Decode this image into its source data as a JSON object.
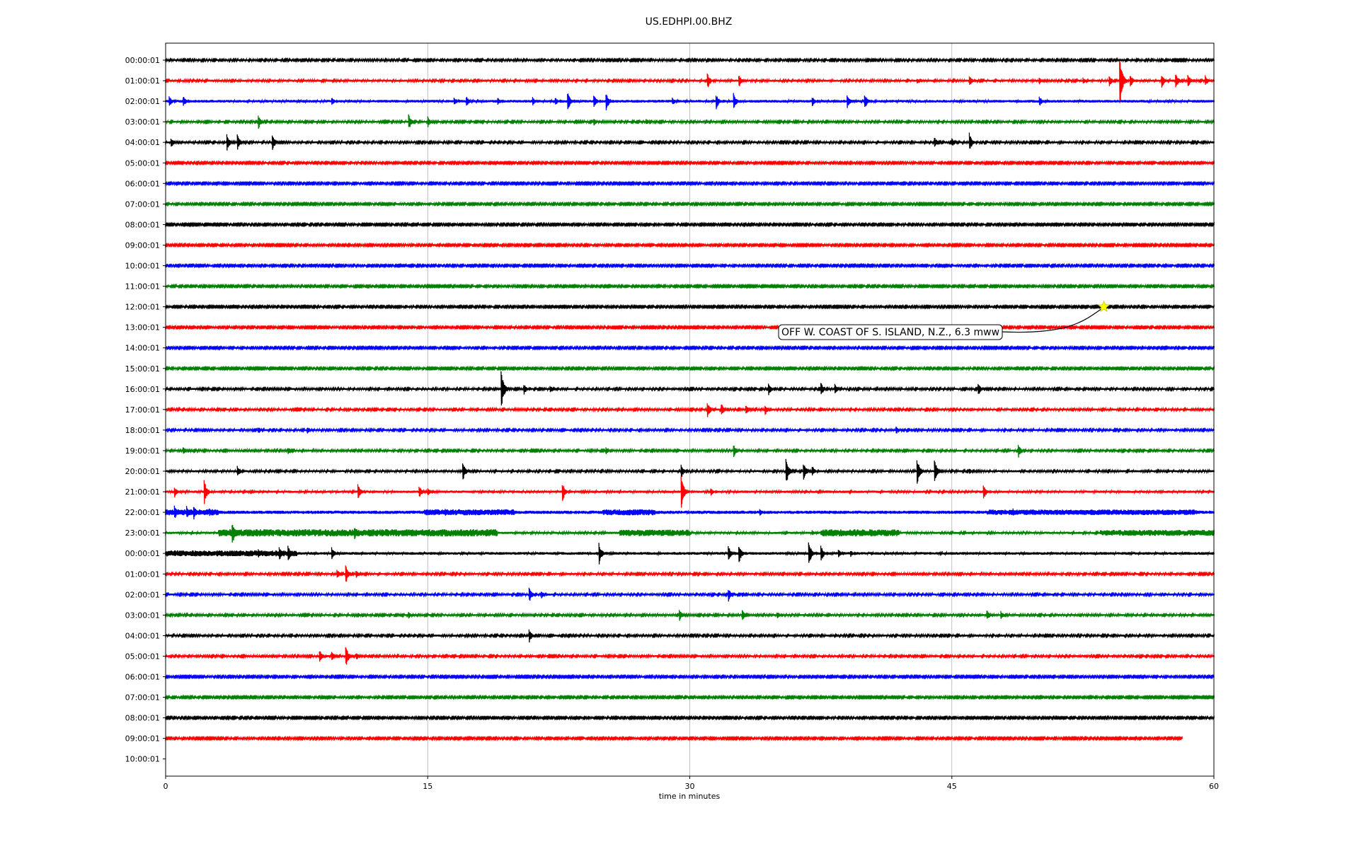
{
  "chart_data": {
    "type": "line",
    "title": "US.EDHPI.00.BHZ",
    "xlabel": "time in minutes",
    "ylabel": "",
    "xlim": [
      0,
      60
    ],
    "x_ticks": [
      "0",
      "15",
      "30",
      "45",
      "60"
    ],
    "x_tick_values": [
      0,
      15,
      30,
      45,
      60
    ],
    "grid": "vertical",
    "legend": "none",
    "row_labels": [
      "00:00:01",
      "01:00:01",
      "02:00:01",
      "03:00:01",
      "04:00:01",
      "05:00:01",
      "06:00:01",
      "07:00:01",
      "08:00:01",
      "09:00:01",
      "10:00:01",
      "11:00:01",
      "12:00:01",
      "13:00:01",
      "14:00:01",
      "15:00:01",
      "16:00:01",
      "17:00:01",
      "18:00:01",
      "19:00:01",
      "20:00:01",
      "21:00:01",
      "22:00:01",
      "23:00:01",
      "00:00:01",
      "01:00:01",
      "02:00:01",
      "03:00:01",
      "04:00:01",
      "05:00:01",
      "06:00:01",
      "07:00:01",
      "08:00:01",
      "09:00:01",
      "10:00:01"
    ],
    "trace_colors": [
      "#000000",
      "#ff0000",
      "#0000ff",
      "#008000"
    ],
    "series": [
      {
        "row": 0,
        "end": 60,
        "noise": 1.2,
        "bursts": [
          [
            8.5,
            2
          ]
        ]
      },
      {
        "row": 1,
        "end": 60,
        "noise": 1.4,
        "bursts": [
          [
            31,
            12
          ],
          [
            32.8,
            10
          ],
          [
            43,
            4
          ],
          [
            46,
            8
          ],
          [
            50,
            5
          ],
          [
            52.5,
            5
          ],
          [
            54,
            8
          ],
          [
            54.6,
            36
          ],
          [
            55.2,
            10
          ],
          [
            57,
            10
          ],
          [
            57.8,
            12
          ],
          [
            58.5,
            10
          ],
          [
            59.5,
            8
          ]
        ]
      },
      {
        "row": 2,
        "end": 60,
        "noise": 1.8,
        "bursts": [
          [
            0.2,
            8
          ],
          [
            1,
            8
          ],
          [
            9.5,
            6
          ],
          [
            16.5,
            6
          ],
          [
            17.2,
            8
          ],
          [
            19,
            6
          ],
          [
            21,
            6
          ],
          [
            22.3,
            6
          ],
          [
            23,
            14
          ],
          [
            24.5,
            10
          ],
          [
            25.2,
            14
          ],
          [
            29,
            6
          ],
          [
            31.5,
            12
          ],
          [
            32.5,
            12
          ],
          [
            37,
            8
          ],
          [
            39,
            10
          ],
          [
            40,
            12
          ],
          [
            50,
            8
          ]
        ]
      },
      {
        "row": 3,
        "end": 60,
        "noise": 1.3,
        "bursts": [
          [
            5.3,
            10
          ],
          [
            13.9,
            12
          ],
          [
            15,
            8
          ],
          [
            23.5,
            4
          ],
          [
            24.5,
            6
          ],
          [
            27.5,
            4
          ]
        ]
      },
      {
        "row": 4,
        "end": 60,
        "noise": 1.3,
        "bursts": [
          [
            0.3,
            8
          ],
          [
            3.5,
            12
          ],
          [
            4.1,
            12
          ],
          [
            6.1,
            12
          ],
          [
            44,
            8
          ],
          [
            45,
            6
          ],
          [
            46,
            14
          ]
        ]
      },
      {
        "row": 5,
        "end": 60,
        "noise": 1.1,
        "bursts": [
          [
            16.5,
            3
          ]
        ]
      },
      {
        "row": 6,
        "end": 60,
        "noise": 1.1,
        "bursts": []
      },
      {
        "row": 7,
        "end": 60,
        "noise": 1.1,
        "bursts": []
      },
      {
        "row": 8,
        "end": 60,
        "noise": 1.1,
        "bursts": []
      },
      {
        "row": 9,
        "end": 60,
        "noise": 1.1,
        "bursts": []
      },
      {
        "row": 10,
        "end": 60,
        "noise": 1.1,
        "bursts": []
      },
      {
        "row": 11,
        "end": 60,
        "noise": 1.1,
        "bursts": []
      },
      {
        "row": 12,
        "end": 60,
        "noise": 1.1,
        "bursts": []
      },
      {
        "row": 13,
        "end": 60,
        "noise": 1.1,
        "bursts": []
      },
      {
        "row": 14,
        "end": 60,
        "noise": 1.1,
        "bursts": []
      },
      {
        "row": 15,
        "end": 60,
        "noise": 1.1,
        "bursts": []
      },
      {
        "row": 16,
        "end": 60,
        "noise": 1.3,
        "bursts": [
          [
            19.2,
            28
          ],
          [
            20.5,
            8
          ],
          [
            22,
            5
          ],
          [
            34.5,
            10
          ],
          [
            37.5,
            10
          ],
          [
            38.3,
            8
          ],
          [
            46.5,
            10
          ],
          [
            52.8,
            3
          ]
        ]
      },
      {
        "row": 17,
        "end": 60,
        "noise": 1.3,
        "bursts": [
          [
            31,
            12
          ],
          [
            31.8,
            10
          ],
          [
            33.2,
            8
          ],
          [
            34.3,
            8
          ],
          [
            37.5,
            3
          ]
        ]
      },
      {
        "row": 18,
        "end": 60,
        "noise": 1.3,
        "bursts": [
          [
            5.3,
            5
          ],
          [
            8.1,
            5
          ],
          [
            41.8,
            6
          ],
          [
            42.5,
            3
          ]
        ]
      },
      {
        "row": 19,
        "end": 60,
        "noise": 1.3,
        "bursts": [
          [
            1,
            6
          ],
          [
            7,
            6
          ],
          [
            25.2,
            5
          ],
          [
            32.5,
            10
          ],
          [
            48.8,
            10
          ]
        ]
      },
      {
        "row": 20,
        "end": 60,
        "noise": 1.4,
        "bursts": [
          [
            4.1,
            8
          ],
          [
            17,
            14
          ],
          [
            29.5,
            10
          ],
          [
            35.5,
            20
          ],
          [
            36.5,
            14
          ],
          [
            37,
            8
          ],
          [
            43,
            20
          ],
          [
            44,
            18
          ],
          [
            46,
            4
          ]
        ]
      },
      {
        "row": 21,
        "end": 60,
        "noise": 1.6,
        "bursts": [
          [
            0.5,
            8
          ],
          [
            2.2,
            18
          ],
          [
            11,
            12
          ],
          [
            14.5,
            10
          ],
          [
            15,
            6
          ],
          [
            22.7,
            14
          ],
          [
            29.5,
            24
          ],
          [
            31.2,
            6
          ],
          [
            46.8,
            12
          ]
        ]
      },
      {
        "row": 22,
        "end": 60,
        "noise": 2.2,
        "bursts": [
          [
            0.5,
            10
          ],
          [
            1.2,
            10
          ],
          [
            1.6,
            12
          ],
          [
            2.5,
            6
          ],
          [
            16,
            5
          ],
          [
            34,
            5
          ],
          [
            48.5,
            6
          ]
        ],
        "bands": [
          [
            0,
            3,
            2
          ],
          [
            14.8,
            20,
            2
          ],
          [
            25,
            28,
            2
          ],
          [
            47,
            59,
            1.6
          ]
        ]
      },
      {
        "row": 23,
        "end": 60,
        "noise": 1.5,
        "bursts": [
          [
            3.8,
            18
          ],
          [
            10.8,
            10
          ],
          [
            37,
            4
          ],
          [
            55,
            4
          ]
        ],
        "bands": [
          [
            3,
            19,
            3.5
          ],
          [
            26,
            30,
            3
          ],
          [
            37.5,
            42,
            3.5
          ],
          [
            53.5,
            60,
            2.6
          ]
        ]
      },
      {
        "row": 24,
        "end": 60,
        "noise": 1.8,
        "bursts": [
          [
            5.3,
            6
          ],
          [
            6.5,
            10
          ],
          [
            7,
            12
          ],
          [
            9.5,
            10
          ],
          [
            24.8,
            16
          ],
          [
            32.2,
            12
          ],
          [
            32.8,
            14
          ],
          [
            36.8,
            20
          ],
          [
            37.5,
            12
          ],
          [
            38.5,
            6
          ],
          [
            39.2,
            5
          ]
        ],
        "bands": [
          [
            0,
            7.5,
            2.4
          ]
        ]
      },
      {
        "row": 25,
        "end": 60,
        "noise": 1.3,
        "bursts": [
          [
            9.8,
            8
          ],
          [
            10.3,
            14
          ],
          [
            10.9,
            6
          ]
        ]
      },
      {
        "row": 26,
        "end": 60,
        "noise": 1.3,
        "bursts": [
          [
            20.8,
            12
          ],
          [
            21.5,
            6
          ],
          [
            32.2,
            10
          ],
          [
            33,
            4
          ],
          [
            38.5,
            3
          ]
        ]
      },
      {
        "row": 27,
        "end": 60,
        "noise": 1.3,
        "bursts": [
          [
            11,
            4
          ],
          [
            13.9,
            5
          ],
          [
            29.4,
            10
          ],
          [
            33,
            8
          ],
          [
            35,
            5
          ],
          [
            47,
            8
          ],
          [
            47.8,
            6
          ]
        ]
      },
      {
        "row": 28,
        "end": 60,
        "noise": 1.3,
        "bursts": [
          [
            20.8,
            10
          ]
        ]
      },
      {
        "row": 29,
        "end": 60,
        "noise": 1.3,
        "bursts": [
          [
            8.8,
            10
          ],
          [
            9.5,
            8
          ],
          [
            10.3,
            16
          ],
          [
            10.9,
            6
          ]
        ]
      },
      {
        "row": 30,
        "end": 60,
        "noise": 1.1,
        "bursts": []
      },
      {
        "row": 31,
        "end": 60,
        "noise": 1.1,
        "bursts": [
          [
            31.8,
            3
          ]
        ]
      },
      {
        "row": 32,
        "end": 60,
        "noise": 1.1,
        "bursts": []
      },
      {
        "row": 33,
        "end": 58.2,
        "noise": 1.1,
        "bursts": []
      }
    ],
    "event_marker": {
      "row": 12,
      "x": 53.7,
      "color": "#ffff00",
      "label": "OFF W. COAST OF S. ISLAND, N.Z., 6.3 mww"
    }
  }
}
